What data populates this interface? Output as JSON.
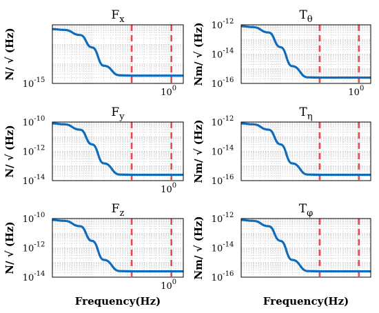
{
  "colors": {
    "curve": "#0f6cbd",
    "marker": "#e8474b",
    "grid": "#c8c8c8",
    "axis": "#000000"
  },
  "chart_data": [
    {
      "type": "line",
      "title": "F",
      "title_sub": "x",
      "ylabel": "N/ √ (Hz)",
      "xlabel": "",
      "yscale": "log",
      "xscale": "log",
      "x_tick_labels": [
        {
          "x": 1,
          "base": "10",
          "exp": "0"
        }
      ],
      "y_tick_labels": [
        {
          "y": 1e-15,
          "base": "10",
          "exp": "-15"
        }
      ],
      "ylim": [
        1e-15,
        1e-12
      ],
      "xlim": [
        0.001,
        2
      ],
      "grid": true,
      "series": [
        {
          "x": [
            0.001,
            0.002,
            0.005,
            0.01,
            0.02,
            0.05,
            0.1,
            0.2,
            0.5,
            1,
            2
          ],
          "y": [
            6e-13,
            5.5e-13,
            3e-13,
            7e-14,
            8e-15,
            2.6e-15,
            2.5e-15,
            2.5e-15,
            2.5e-15,
            2.5e-15,
            2.5e-15
          ]
        }
      ],
      "vlines": [
        0.1,
        1
      ]
    },
    {
      "type": "line",
      "title": "T",
      "title_sub": "θ",
      "ylabel": "Nm/ √ (Hz)",
      "xlabel": "",
      "yscale": "log",
      "xscale": "log",
      "x_tick_labels": [
        {
          "x": 1,
          "base": "10",
          "exp": "0"
        }
      ],
      "y_tick_labels": [
        {
          "y": 1e-12,
          "base": "10",
          "exp": "-12"
        },
        {
          "y": 1e-14,
          "base": "10",
          "exp": "-14"
        },
        {
          "y": 1e-16,
          "base": "10",
          "exp": "-16"
        }
      ],
      "ylim": [
        1e-16,
        1e-12
      ],
      "xlim": [
        0.001,
        2
      ],
      "grid": true,
      "series": [
        {
          "x": [
            0.001,
            0.002,
            0.005,
            0.01,
            0.02,
            0.05,
            0.1,
            0.2,
            0.5,
            1,
            2
          ],
          "y": [
            8e-13,
            7e-13,
            3e-13,
            3e-14,
            1.5e-15,
            2.6e-16,
            2.5e-16,
            2.5e-16,
            2.5e-16,
            2.5e-16,
            2.5e-16
          ]
        }
      ],
      "vlines": [
        0.1,
        1
      ]
    },
    {
      "type": "line",
      "title": "F",
      "title_sub": "y",
      "ylabel": "N/ √ (Hz)",
      "xlabel": "",
      "yscale": "log",
      "xscale": "log",
      "x_tick_labels": [
        {
          "x": 1,
          "base": "10",
          "exp": "0"
        }
      ],
      "y_tick_labels": [
        {
          "y": 1e-10,
          "base": "10",
          "exp": "-10"
        },
        {
          "y": 1e-12,
          "base": "10",
          "exp": "-12"
        },
        {
          "y": 1e-14,
          "base": "10",
          "exp": "-14"
        }
      ],
      "ylim": [
        1e-14,
        1e-10
      ],
      "xlim": [
        0.001,
        2
      ],
      "grid": true,
      "series": [
        {
          "x": [
            0.001,
            0.002,
            0.005,
            0.01,
            0.02,
            0.05,
            0.1,
            0.2,
            0.5,
            1,
            2
          ],
          "y": [
            8e-11,
            7e-11,
            3e-11,
            3e-12,
            1.5e-13,
            2.6e-14,
            2.5e-14,
            2.5e-14,
            2.5e-14,
            2.5e-14,
            2.5e-14
          ]
        }
      ],
      "vlines": [
        0.1,
        1
      ]
    },
    {
      "type": "line",
      "title": "T",
      "title_sub": "η",
      "ylabel": "Nm/ √ (Hz)",
      "xlabel": "",
      "yscale": "log",
      "xscale": "log",
      "x_tick_labels": [],
      "y_tick_labels": [
        {
          "y": 1e-12,
          "base": "10",
          "exp": "-12"
        },
        {
          "y": 1e-14,
          "base": "10",
          "exp": "-14"
        },
        {
          "y": 1e-16,
          "base": "10",
          "exp": "-16"
        }
      ],
      "ylim": [
        1e-16,
        1e-12
      ],
      "xlim": [
        0.001,
        2
      ],
      "grid": true,
      "series": [
        {
          "x": [
            0.001,
            0.002,
            0.005,
            0.01,
            0.02,
            0.05,
            0.1,
            0.2,
            0.5,
            1,
            2
          ],
          "y": [
            8e-13,
            7e-13,
            3e-13,
            3e-14,
            1.5e-15,
            2.6e-16,
            2.5e-16,
            2.5e-16,
            2.5e-16,
            2.5e-16,
            2.5e-16
          ]
        }
      ],
      "vlines": [
        0.1,
        1
      ]
    },
    {
      "type": "line",
      "title": "F",
      "title_sub": "z",
      "ylabel": "N/ √ (Hz)",
      "xlabel": "Frequency(Hz)",
      "yscale": "log",
      "xscale": "log",
      "x_tick_labels": [
        {
          "x": 1,
          "base": "10",
          "exp": "0"
        }
      ],
      "y_tick_labels": [
        {
          "y": 1e-10,
          "base": "10",
          "exp": "-10"
        },
        {
          "y": 1e-12,
          "base": "10",
          "exp": "-12"
        },
        {
          "y": 1e-14,
          "base": "10",
          "exp": "-14"
        }
      ],
      "ylim": [
        1e-14,
        1e-10
      ],
      "xlim": [
        0.001,
        2
      ],
      "grid": true,
      "series": [
        {
          "x": [
            0.001,
            0.002,
            0.005,
            0.01,
            0.02,
            0.05,
            0.1,
            0.2,
            0.5,
            1,
            2
          ],
          "y": [
            8e-11,
            7e-11,
            3e-11,
            3e-12,
            1.5e-13,
            2.6e-14,
            2.5e-14,
            2.5e-14,
            2.5e-14,
            2.5e-14,
            2.5e-14
          ]
        }
      ],
      "vlines": [
        0.1,
        1
      ]
    },
    {
      "type": "line",
      "title": "T",
      "title_sub": "φ",
      "ylabel": "Nm/ √ (Hz)",
      "xlabel": "Frequency(Hz)",
      "yscale": "log",
      "xscale": "log",
      "x_tick_labels": [],
      "y_tick_labels": [
        {
          "y": 1e-12,
          "base": "10",
          "exp": "-12"
        },
        {
          "y": 1e-14,
          "base": "10",
          "exp": "-14"
        },
        {
          "y": 1e-16,
          "base": "10",
          "exp": "-16"
        }
      ],
      "ylim": [
        1e-16,
        1e-12
      ],
      "xlim": [
        0.001,
        2
      ],
      "grid": true,
      "series": [
        {
          "x": [
            0.001,
            0.002,
            0.005,
            0.01,
            0.02,
            0.05,
            0.1,
            0.2,
            0.5,
            1,
            2
          ],
          "y": [
            8e-13,
            7e-13,
            3e-13,
            3e-14,
            1.5e-15,
            2.6e-16,
            2.5e-16,
            2.5e-16,
            2.5e-16,
            2.5e-16,
            2.5e-16
          ]
        }
      ],
      "vlines": [
        0.1,
        1
      ]
    }
  ]
}
